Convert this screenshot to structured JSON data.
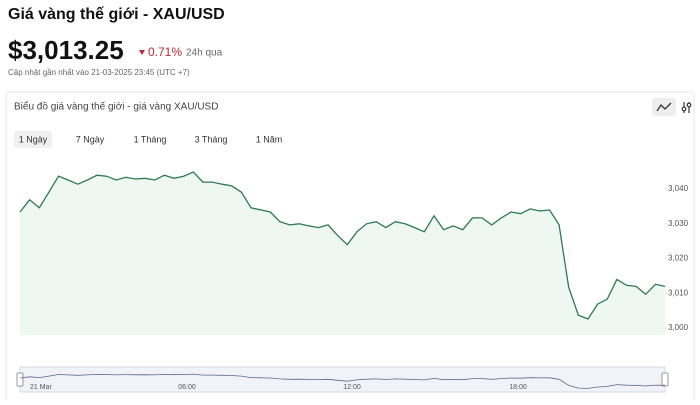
{
  "header": {
    "title": "Giá vàng thế giới - XAU/USD",
    "price": "$3,013.25",
    "change": "0.71%",
    "period": "24h qua",
    "updated": "Cập nhật gần nhất vào 21-03-2025 23:45 (UTC +7)"
  },
  "chart_card": {
    "title": "Biểu đồ giá vàng thế giới - giá vàng XAU/USD",
    "tabs": [
      "1 Ngày",
      "7 Ngày",
      "1 Tháng",
      "3 Tháng",
      "1 Năm"
    ],
    "active_tab": 0
  },
  "chart_data": {
    "type": "area",
    "color": "#2d7a50",
    "fill": "#eef7f1",
    "values": [
      3033.4,
      3036.9,
      3034.6,
      3039.1,
      3043.7,
      3042.6,
      3041.4,
      3042.6,
      3044,
      3043.7,
      3042.6,
      3043.4,
      3042.9,
      3043.1,
      3042.6,
      3044,
      3043.1,
      3043.7,
      3044.9,
      3042,
      3042,
      3041.4,
      3040.9,
      3039.1,
      3034.6,
      3034,
      3033.4,
      3030.6,
      3029.7,
      3030,
      3029.4,
      3028.9,
      3029.7,
      3026.6,
      3024,
      3027.7,
      3030,
      3030.6,
      3028.9,
      3030.6,
      3030,
      3028.9,
      3027.7,
      3032.3,
      3028.3,
      3029.4,
      3028.3,
      3031.7,
      3031.7,
      3029.7,
      3031.7,
      3033.4,
      3032.9,
      3034.3,
      3033.7,
      3034,
      3029.7,
      3011.7,
      3003.7,
      3002.6,
      3006.9,
      3008.3,
      3014,
      3012.3,
      3012,
      3009.7,
      3012.6,
      3012
    ],
    "ylim": [
      2998,
      3057
    ],
    "yticks": [
      {
        "value": 3000,
        "label": "3,000"
      },
      {
        "value": 3010,
        "label": "3,010"
      },
      {
        "value": 3020,
        "label": "3,020"
      },
      {
        "value": 3030,
        "label": "3,030"
      },
      {
        "value": 3040,
        "label": "3,040"
      }
    ],
    "grid": false,
    "navigator_labels": [
      "21 Mar",
      "06:00",
      "12:00",
      "18:00"
    ]
  }
}
